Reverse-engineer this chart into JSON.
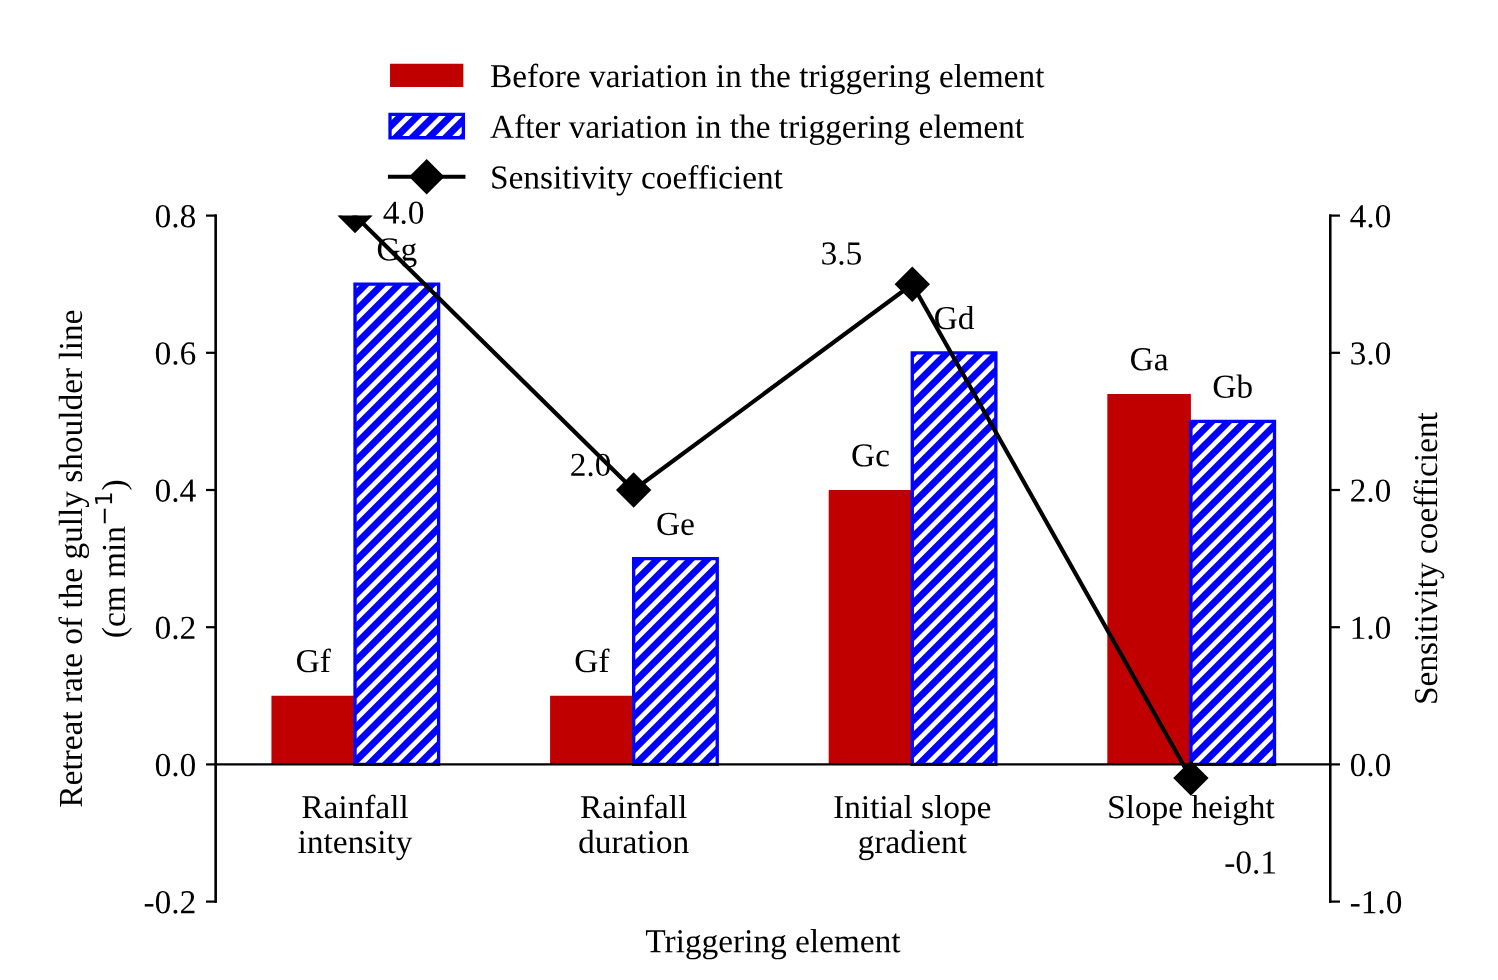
{
  "chart_data": {
    "type": "bar",
    "xlabel": "Triggering element",
    "ylabel": "Retreat rate of the gully shoulder line\n(cm min$^{−1}$)",
    "y2label": "Sensitivity coefficient",
    "categories": [
      "Rainfall\nintensity",
      "Rainfall\nduration",
      "Initial slope\ngradient",
      "Slope height"
    ],
    "series": [
      {
        "name": "Before variation in the triggering element",
        "color": "#c00000",
        "values": [
          0.1,
          0.1,
          0.4,
          0.54
        ],
        "value_labels": [
          "Gf",
          "Gf",
          "Gc",
          "Ga"
        ]
      },
      {
        "name": "After variation in the triggering element",
        "color": "#0000ff",
        "values": [
          0.7,
          0.3,
          0.6,
          0.5
        ],
        "value_labels": [
          "Gg",
          "Ge",
          "Gd",
          "Gb"
        ]
      },
      {
        "name": "Sensitivity coefficient",
        "type": "line",
        "axis": "y2",
        "color": "#000000",
        "marker": "diamond",
        "values": [
          4.0,
          2.0,
          3.5,
          -0.1
        ],
        "value_labels": [
          "4.0",
          "2.0",
          "3.5",
          "-0.1"
        ]
      }
    ],
    "ylim": [
      -0.2,
      0.8
    ],
    "yticks": [
      -0.2,
      {
        "value": 0.0,
        "label": "0.0"
      },
      0.2,
      0.4,
      0.6,
      0.8
    ],
    "y2lim": [
      -1.0,
      4.0
    ],
    "y2ticks": [
      {
        "value": -1.0,
        "label": "-1.0"
      },
      {
        "value": 0.0,
        "label": "0.0"
      },
      {
        "value": 1.0,
        "label": "1.0"
      },
      {
        "value": 2.0,
        "label": "2.0"
      },
      {
        "value": 3.0,
        "label": "3.0"
      },
      {
        "value": 4.0,
        "label": "4.0"
      }
    ],
    "grid": false,
    "legend": "top"
  }
}
